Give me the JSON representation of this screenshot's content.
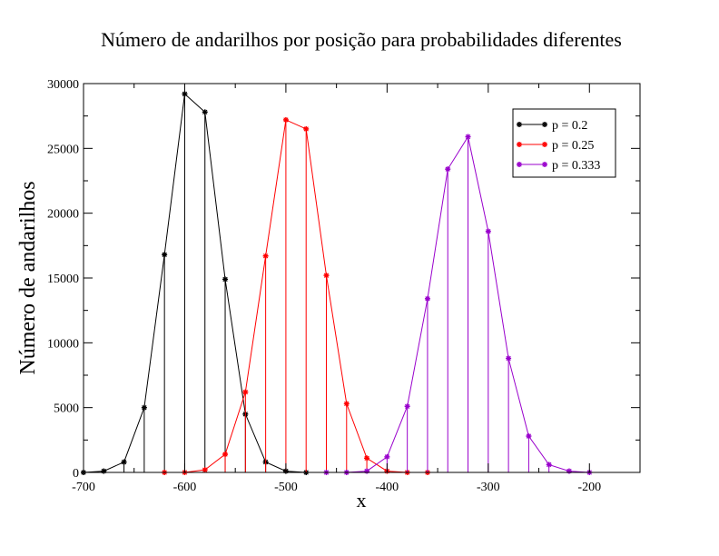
{
  "chart_data": {
    "type": "line",
    "title": "Número de andarilhos por posição para probabilidades diferentes",
    "xlabel": "x",
    "ylabel": "Número de andarilhos",
    "xlim": [
      -700,
      -150
    ],
    "ylim": [
      0,
      30000
    ],
    "x_ticks": [
      -700,
      -600,
      -500,
      -400,
      -300,
      -200
    ],
    "x_tick_labels": [
      "-700",
      "-600",
      "-500",
      "-400",
      "-300",
      "-200"
    ],
    "y_ticks": [
      0,
      5000,
      10000,
      15000,
      20000,
      25000,
      30000
    ],
    "y_tick_labels": [
      "0",
      "5000",
      "10000",
      "15000",
      "20000",
      "25000",
      "30000"
    ],
    "grid": false,
    "legend_position": "top-right",
    "series": [
      {
        "name": "p = 0.2",
        "color": "#000000",
        "x": [
          -700,
          -680,
          -660,
          -640,
          -620,
          -600,
          -580,
          -560,
          -540,
          -520,
          -500,
          -480
        ],
        "y": [
          0,
          100,
          800,
          5000,
          16800,
          29200,
          27800,
          14900,
          4500,
          800,
          100,
          0
        ]
      },
      {
        "name": "p = 0.25",
        "color": "#ff0000",
        "x": [
          -620,
          -600,
          -580,
          -560,
          -540,
          -520,
          -500,
          -480,
          -460,
          -440,
          -420,
          -400,
          -380,
          -360
        ],
        "y": [
          0,
          0,
          200,
          1400,
          6200,
          16700,
          27200,
          26500,
          15200,
          5300,
          1100,
          100,
          0,
          0
        ]
      },
      {
        "name": "p = 0.333",
        "color": "#9900cc",
        "x": [
          -460,
          -440,
          -420,
          -400,
          -380,
          -360,
          -340,
          -320,
          -300,
          -280,
          -260,
          -240,
          -220,
          -200
        ],
        "y": [
          0,
          0,
          100,
          1200,
          5100,
          13400,
          23400,
          25900,
          18600,
          8800,
          2800,
          600,
          100,
          0
        ]
      }
    ]
  }
}
